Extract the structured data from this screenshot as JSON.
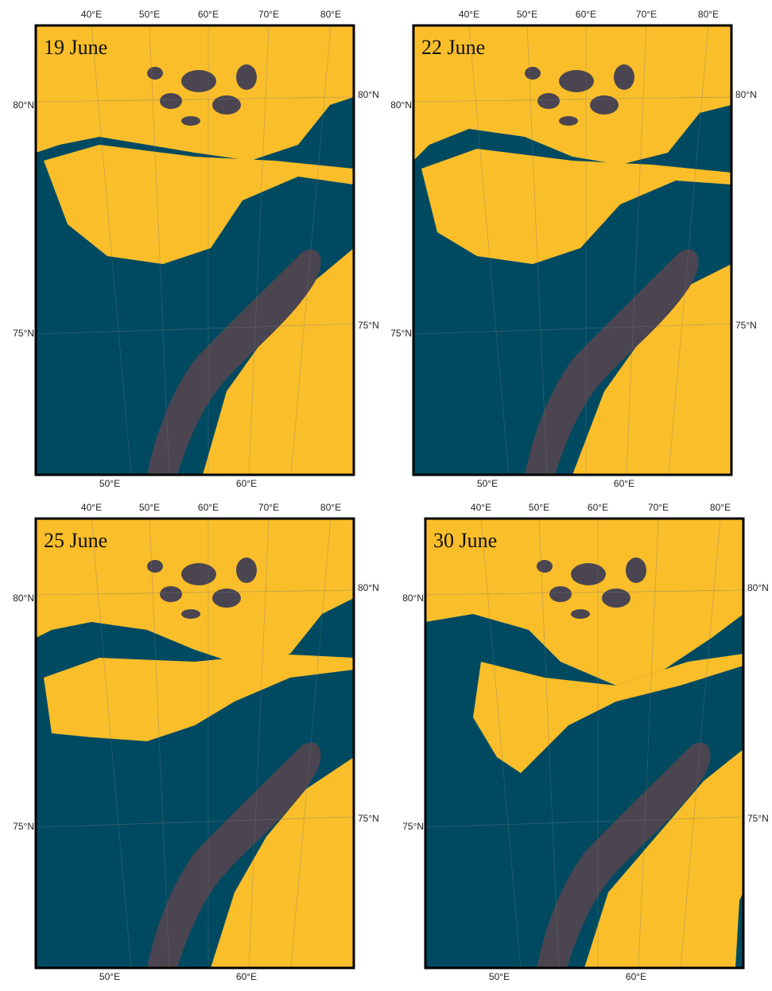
{
  "panels": [
    {
      "label": "19 June",
      "top_labels": [
        "40°E",
        "50°E",
        "60°E",
        "70°E",
        "80°E"
      ],
      "left_labels": [
        "80°N",
        "75°N"
      ],
      "right_labels": [
        "80°N",
        "75°N"
      ],
      "bottom_labels": [
        "50°E",
        "60°E"
      ]
    },
    {
      "label": "22 June",
      "top_labels": [
        "40°E",
        "50°E",
        "60°E",
        "70°E",
        "80°E"
      ],
      "left_labels": [
        "80°N",
        "75°N"
      ],
      "right_labels": [
        "80°N",
        "75°N"
      ],
      "bottom_labels": [
        "50°E",
        "60°E"
      ]
    },
    {
      "label": "25 June",
      "top_labels": [
        "40°E",
        "50°E",
        "60°E",
        "70°E",
        "80°E"
      ],
      "left_labels": [
        "80°N",
        "75°N"
      ],
      "right_labels": [
        "80°N",
        "75°N"
      ],
      "bottom_labels": [
        "50°E",
        "60°E"
      ]
    },
    {
      "label": "30 June",
      "top_labels": [
        "40°E",
        "50°E",
        "60°E",
        "70°E",
        "80°E"
      ],
      "left_labels": [
        "80°N",
        "75°N"
      ],
      "right_labels": [
        "80°N",
        "75°N"
      ],
      "bottom_labels": [
        "50°E",
        "60°E"
      ]
    }
  ]
}
